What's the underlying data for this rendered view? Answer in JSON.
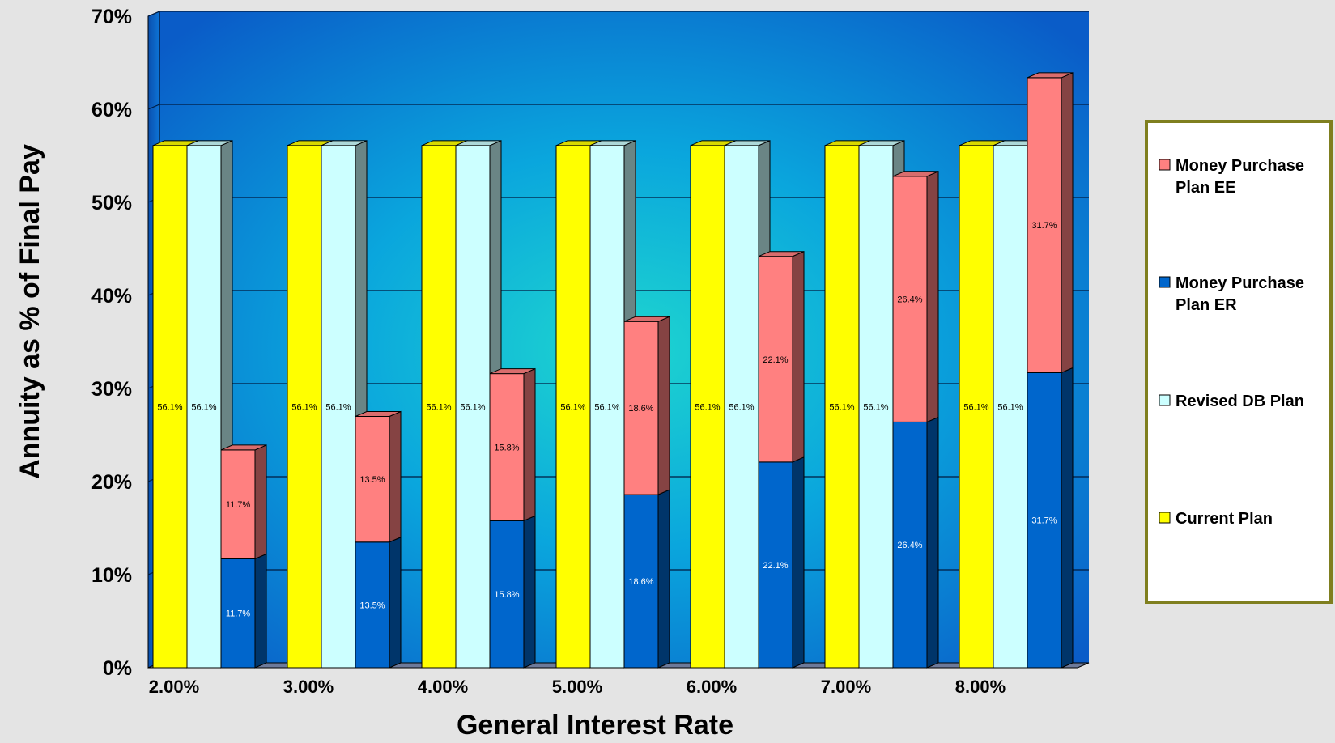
{
  "chart_data": {
    "type": "bar",
    "xlabel": "General Interest Rate",
    "ylabel": "Annuity as % of Final Pay",
    "ylim": [
      0,
      70
    ],
    "yticks": [
      "0%",
      "10%",
      "20%",
      "30%",
      "40%",
      "50%",
      "60%",
      "70%"
    ],
    "categories": [
      "2.00%",
      "3.00%",
      "4.00%",
      "5.00%",
      "6.00%",
      "7.00%",
      "8.00%"
    ],
    "grid": true,
    "legend_position": "right",
    "series": [
      {
        "name": "Current Plan",
        "color": "#ffff00",
        "values": [
          56.1,
          56.1,
          56.1,
          56.1,
          56.1,
          56.1,
          56.1
        ],
        "labels": [
          "56.1%",
          "56.1%",
          "56.1%",
          "56.1%",
          "56.1%",
          "56.1%",
          "56.1%"
        ]
      },
      {
        "name": "Revised DB Plan",
        "color": "#ccffff",
        "values": [
          56.1,
          56.1,
          56.1,
          56.1,
          56.1,
          56.1,
          56.1
        ],
        "labels": [
          "56.1%",
          "56.1%",
          "56.1%",
          "56.1%",
          "56.1%",
          "56.1%",
          "56.1%"
        ]
      },
      {
        "name": "Money Purchase Plan ER",
        "color": "#0066cc",
        "values": [
          11.7,
          13.5,
          15.8,
          18.6,
          22.1,
          26.4,
          31.7
        ],
        "labels": [
          "11.7%",
          "13.5%",
          "15.8%",
          "18.6%",
          "22.1%",
          "26.4%",
          "31.7%"
        ]
      },
      {
        "name": "Money Purchase Plan EE",
        "color": "#ff8080",
        "values": [
          11.7,
          13.5,
          15.8,
          18.6,
          22.1,
          26.4,
          31.7
        ],
        "labels": [
          "11.7%",
          "13.5%",
          "15.8%",
          "18.6%",
          "22.1%",
          "26.4%",
          "31.7%"
        ]
      }
    ],
    "legend": {
      "items": [
        {
          "label": "Money Purchase Plan EE",
          "lines": [
            "Money Purchase",
            "Plan EE"
          ],
          "color": "#ff8080"
        },
        {
          "label": "Money Purchase Plan ER",
          "lines": [
            "Money Purchase",
            "Plan ER"
          ],
          "color": "#0066cc"
        },
        {
          "label": "Revised DB Plan",
          "lines": [
            "Revised DB Plan"
          ],
          "color": "#ccffff"
        },
        {
          "label": "Current Plan",
          "lines": [
            "Current Plan"
          ],
          "color": "#ffff00"
        }
      ]
    }
  }
}
